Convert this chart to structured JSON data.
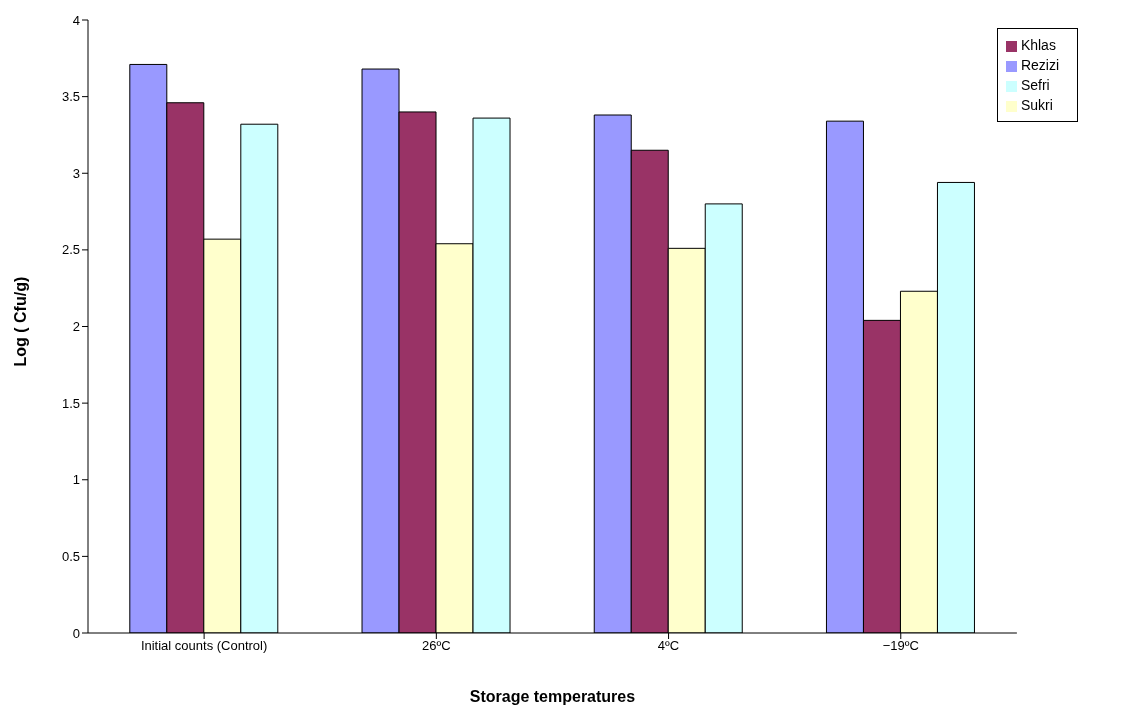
{
  "chart_data": {
    "type": "bar",
    "xlabel": "Storage temperatures",
    "ylabel": "Log ( Cfu/g)",
    "categories": [
      "Initial counts (Control)",
      "26ºC",
      "4ºC",
      "−19ºC"
    ],
    "series": [
      {
        "name": "Rezizi",
        "color": "#9999ff",
        "values": [
          3.71,
          3.68,
          3.38,
          3.34
        ]
      },
      {
        "name": "Khlas",
        "color": "#993366",
        "values": [
          3.46,
          3.4,
          3.15,
          2.04
        ]
      },
      {
        "name": "Sukri",
        "color": "#ffffcc",
        "values": [
          2.57,
          2.54,
          2.51,
          2.23
        ]
      },
      {
        "name": "Sefri",
        "color": "#ccffff",
        "values": [
          3.32,
          3.36,
          2.8,
          2.94
        ]
      }
    ],
    "ylim": [
      0,
      4
    ],
    "yticks": [
      0,
      0.5,
      1,
      1.5,
      2,
      2.5,
      3,
      3.5,
      4
    ],
    "grid": false,
    "legend": "top right"
  }
}
